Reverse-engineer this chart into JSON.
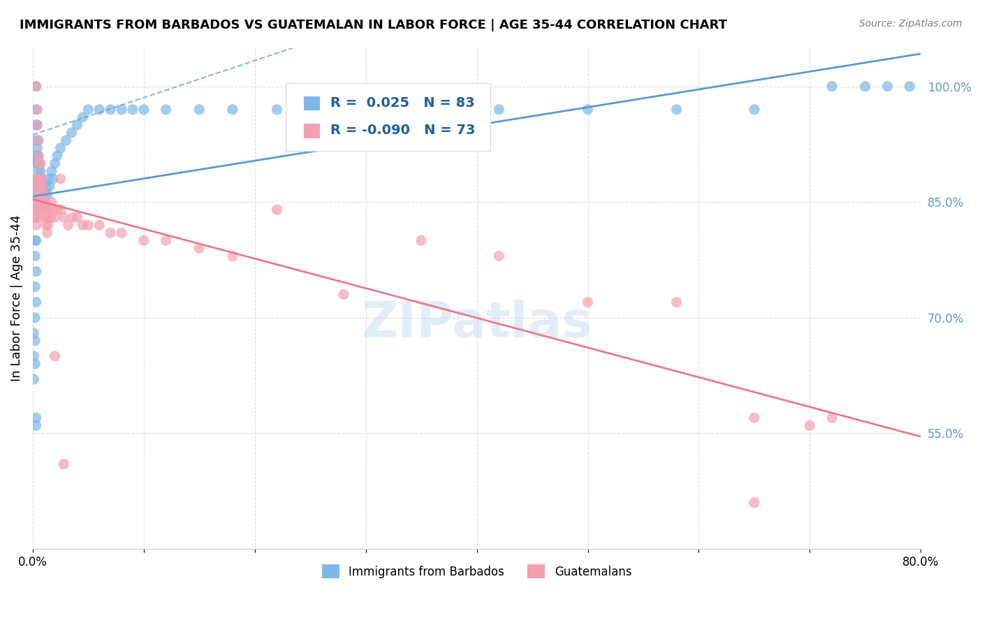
{
  "title": "IMMIGRANTS FROM BARBADOS VS GUATEMALAN IN LABOR FORCE | AGE 35-44 CORRELATION CHART",
  "source": "Source: ZipAtlas.com",
  "xlabel": "",
  "ylabel": "In Labor Force | Age 35-44",
  "xmin": 0.0,
  "xmax": 0.8,
  "ymin": 0.4,
  "ymax": 1.05,
  "yticks": [
    0.55,
    0.7,
    0.85,
    1.0
  ],
  "ytick_labels": [
    "55.0%",
    "70.0%",
    "85.0%",
    "100.0%"
  ],
  "xtick_labels": [
    "0.0%",
    "",
    "",
    "",
    "",
    "",
    "",
    "",
    "80.0%"
  ],
  "barbados_R": 0.025,
  "barbados_N": 83,
  "guatemalan_R": -0.09,
  "guatemalan_N": 73,
  "barbados_color": "#7DB8E8",
  "guatemalan_color": "#F4A0B0",
  "barbados_line_color": "#5B9BD5",
  "guatemalan_line_color": "#E87B8C",
  "trendline_blue_dashed": true,
  "background_color": "#FFFFFF",
  "grid_color": "#DDDDDD",
  "watermark": "ZIPatlas",
  "barbados_x": [
    0.003,
    0.003,
    0.003,
    0.003,
    0.003,
    0.003,
    0.003,
    0.004,
    0.004,
    0.004,
    0.004,
    0.004,
    0.004,
    0.004,
    0.004,
    0.005,
    0.005,
    0.005,
    0.005,
    0.005,
    0.005,
    0.005,
    0.006,
    0.006,
    0.006,
    0.006,
    0.007,
    0.007,
    0.007,
    0.008,
    0.008,
    0.009,
    0.009,
    0.01,
    0.01,
    0.011,
    0.012,
    0.013,
    0.014,
    0.015,
    0.017,
    0.018,
    0.02,
    0.022,
    0.025,
    0.03,
    0.035,
    0.04,
    0.045,
    0.05,
    0.06,
    0.07,
    0.08,
    0.09,
    0.1,
    0.12,
    0.15,
    0.18,
    0.22,
    0.28,
    0.35,
    0.42,
    0.5,
    0.58,
    0.65,
    0.72,
    0.75,
    0.77,
    0.79,
    0.001,
    0.001,
    0.001,
    0.002,
    0.002,
    0.002,
    0.002,
    0.002,
    0.002,
    0.003,
    0.003,
    0.003,
    0.003,
    0.003
  ],
  "barbados_y": [
    1.0,
    0.97,
    0.95,
    0.93,
    0.91,
    0.9,
    0.88,
    0.95,
    0.92,
    0.9,
    0.88,
    0.87,
    0.86,
    0.85,
    0.84,
    0.93,
    0.91,
    0.89,
    0.87,
    0.86,
    0.85,
    0.84,
    0.9,
    0.88,
    0.87,
    0.85,
    0.89,
    0.87,
    0.86,
    0.88,
    0.86,
    0.87,
    0.85,
    0.86,
    0.85,
    0.86,
    0.87,
    0.86,
    0.88,
    0.87,
    0.89,
    0.88,
    0.9,
    0.91,
    0.92,
    0.93,
    0.94,
    0.95,
    0.96,
    0.97,
    0.97,
    0.97,
    0.97,
    0.97,
    0.97,
    0.97,
    0.97,
    0.97,
    0.97,
    0.97,
    0.97,
    0.97,
    0.97,
    0.97,
    0.97,
    1.0,
    1.0,
    1.0,
    1.0,
    0.68,
    0.65,
    0.62,
    0.8,
    0.78,
    0.74,
    0.7,
    0.67,
    0.64,
    0.8,
    0.76,
    0.72,
    0.57,
    0.56
  ],
  "guatemalan_x": [
    0.003,
    0.004,
    0.004,
    0.005,
    0.005,
    0.006,
    0.006,
    0.007,
    0.007,
    0.008,
    0.008,
    0.009,
    0.009,
    0.01,
    0.01,
    0.011,
    0.011,
    0.012,
    0.012,
    0.013,
    0.013,
    0.014,
    0.015,
    0.016,
    0.017,
    0.018,
    0.02,
    0.022,
    0.025,
    0.028,
    0.032,
    0.036,
    0.04,
    0.045,
    0.05,
    0.06,
    0.07,
    0.08,
    0.1,
    0.12,
    0.15,
    0.18,
    0.22,
    0.28,
    0.35,
    0.42,
    0.5,
    0.58,
    0.65,
    0.7,
    0.72,
    0.001,
    0.001,
    0.002,
    0.002,
    0.002,
    0.002,
    0.003,
    0.003,
    0.003,
    0.004,
    0.004,
    0.004,
    0.005,
    0.005,
    0.006,
    0.007,
    0.007,
    0.008,
    0.02,
    0.025,
    0.028,
    0.65
  ],
  "guatemalan_y": [
    1.0,
    0.97,
    0.95,
    0.93,
    0.91,
    0.9,
    0.88,
    0.9,
    0.87,
    0.88,
    0.86,
    0.87,
    0.85,
    0.86,
    0.84,
    0.85,
    0.83,
    0.84,
    0.82,
    0.83,
    0.81,
    0.82,
    0.84,
    0.83,
    0.85,
    0.84,
    0.83,
    0.84,
    0.84,
    0.83,
    0.82,
    0.83,
    0.83,
    0.82,
    0.82,
    0.82,
    0.81,
    0.81,
    0.8,
    0.8,
    0.79,
    0.78,
    0.84,
    0.73,
    0.8,
    0.78,
    0.72,
    0.72,
    0.57,
    0.56,
    0.57,
    0.85,
    0.83,
    0.88,
    0.87,
    0.85,
    0.83,
    0.86,
    0.84,
    0.82,
    0.88,
    0.86,
    0.84,
    0.86,
    0.83,
    0.85,
    0.87,
    0.85,
    0.84,
    0.65,
    0.88,
    0.51,
    0.46
  ]
}
